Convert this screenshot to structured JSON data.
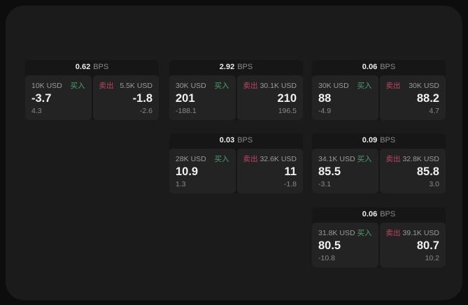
{
  "page": {
    "background": "#0d0d0d",
    "panel_background": "#1b1b1b"
  },
  "colors": {
    "card_bg": "#161616",
    "cell_bg": "#232323",
    "buy_green": "#4aa06c",
    "sell_red": "#bd4660",
    "value_text": "#f0f0f0",
    "muted_text": "#8a8a8a"
  },
  "labels": {
    "bps": "BPS",
    "buy": "买入",
    "sell": "卖出"
  },
  "cards": [
    {
      "bps": "0.62",
      "buy": {
        "size": "10K USD",
        "value": "-3.7",
        "delta": "4.3"
      },
      "sell": {
        "size": "5.5K USD",
        "value": "-1.8",
        "delta": "-2.6"
      }
    },
    {
      "bps": "2.92",
      "buy": {
        "size": "30K USD",
        "value": "201",
        "delta": "-188.1"
      },
      "sell": {
        "size": "30.1K USD",
        "value": "210",
        "delta": "196.5"
      }
    },
    {
      "bps": "0.06",
      "buy": {
        "size": "30K USD",
        "value": "88",
        "delta": "-4.9"
      },
      "sell": {
        "size": "30K USD",
        "value": "88.2",
        "delta": "4.7"
      }
    },
    {
      "bps": "0.03",
      "buy": {
        "size": "28K USD",
        "value": "10.9",
        "delta": "1.3"
      },
      "sell": {
        "size": "32.6K USD",
        "value": "11",
        "delta": "-1.8"
      }
    },
    {
      "bps": "0.09",
      "buy": {
        "size": "34.1K USD",
        "value": "85.5",
        "delta": "-3.1"
      },
      "sell": {
        "size": "32.8K USD",
        "value": "85.8",
        "delta": "3.0"
      }
    },
    {
      "bps": "0.06",
      "buy": {
        "size": "31.8K USD",
        "value": "80.5",
        "delta": "-10.8"
      },
      "sell": {
        "size": "39.1K USD",
        "value": "80.7",
        "delta": "10.2"
      }
    }
  ]
}
